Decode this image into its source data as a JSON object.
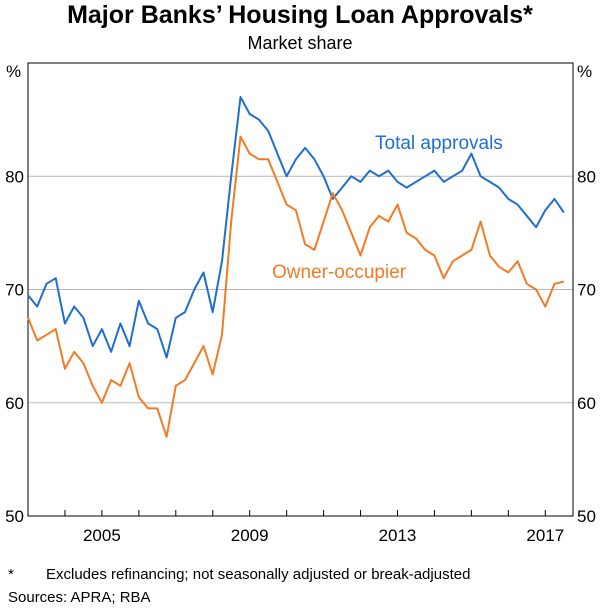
{
  "title": "Major Banks’ Housing Loan Approvals*",
  "subtitle": "Market share",
  "footnote_marker": "*",
  "footnote": "Excludes refinancing; not seasonally adjusted or break-adjusted",
  "sources": "Sources: APRA; RBA",
  "colors": {
    "total": "#1f6fd1",
    "owner": "#f47a24",
    "grid": "#b9b9b9",
    "axis": "#000000"
  },
  "chart_data": {
    "type": "line",
    "title": "Major Banks’ Housing Loan Approvals*",
    "subtitle": "Market share",
    "y_unit_left": "%",
    "y_unit_right": "%",
    "ylim": [
      50,
      90
    ],
    "yticks": [
      50,
      60,
      70,
      80
    ],
    "xlim": [
      2003.0,
      2017.75
    ],
    "xticks": [
      2005,
      2009,
      2013,
      2017
    ],
    "xtick_labels": [
      "2005",
      "2009",
      "2013",
      "2017"
    ],
    "series": [
      {
        "name": "Total approvals",
        "key": "total",
        "x": [
          2003.0,
          2003.25,
          2003.5,
          2003.75,
          2004.0,
          2004.25,
          2004.5,
          2004.75,
          2005.0,
          2005.25,
          2005.5,
          2005.75,
          2006.0,
          2006.25,
          2006.5,
          2006.75,
          2007.0,
          2007.25,
          2007.5,
          2007.75,
          2008.0,
          2008.25,
          2008.5,
          2008.75,
          2009.0,
          2009.25,
          2009.5,
          2009.75,
          2010.0,
          2010.25,
          2010.5,
          2010.75,
          2011.0,
          2011.25,
          2011.5,
          2011.75,
          2012.0,
          2012.25,
          2012.5,
          2012.75,
          2013.0,
          2013.25,
          2013.5,
          2013.75,
          2014.0,
          2014.25,
          2014.5,
          2014.75,
          2015.0,
          2015.25,
          2015.5,
          2015.75,
          2016.0,
          2016.25,
          2016.5,
          2016.75,
          2017.0,
          2017.25,
          2017.5
        ],
        "values": [
          69.5,
          68.5,
          70.5,
          71.0,
          67.0,
          68.5,
          67.5,
          65.0,
          66.5,
          64.5,
          67.0,
          65.0,
          69.0,
          67.0,
          66.5,
          64.0,
          67.5,
          68.0,
          70.0,
          71.5,
          68.0,
          72.5,
          80.0,
          87.0,
          85.5,
          85.0,
          84.0,
          82.0,
          80.0,
          81.5,
          82.5,
          81.5,
          80.0,
          78.0,
          79.0,
          80.0,
          79.5,
          80.5,
          80.0,
          80.5,
          79.5,
          79.0,
          79.5,
          80.0,
          80.5,
          79.5,
          80.0,
          80.5,
          82.0,
          80.0,
          79.5,
          79.0,
          78.0,
          77.5,
          76.5,
          75.5,
          77.0,
          78.0,
          76.8
        ]
      },
      {
        "name": "Owner-occupier",
        "key": "owner",
        "x": [
          2003.0,
          2003.25,
          2003.5,
          2003.75,
          2004.0,
          2004.25,
          2004.5,
          2004.75,
          2005.0,
          2005.25,
          2005.5,
          2005.75,
          2006.0,
          2006.25,
          2006.5,
          2006.75,
          2007.0,
          2007.25,
          2007.5,
          2007.75,
          2008.0,
          2008.25,
          2008.5,
          2008.75,
          2009.0,
          2009.25,
          2009.5,
          2009.75,
          2010.0,
          2010.25,
          2010.5,
          2010.75,
          2011.0,
          2011.25,
          2011.5,
          2011.75,
          2012.0,
          2012.25,
          2012.5,
          2012.75,
          2013.0,
          2013.25,
          2013.5,
          2013.75,
          2014.0,
          2014.25,
          2014.5,
          2014.75,
          2015.0,
          2015.25,
          2015.5,
          2015.75,
          2016.0,
          2016.25,
          2016.5,
          2016.75,
          2017.0,
          2017.25,
          2017.5
        ],
        "values": [
          67.5,
          65.5,
          66.0,
          66.5,
          63.0,
          64.5,
          63.5,
          61.5,
          60.0,
          62.0,
          61.5,
          63.5,
          60.5,
          59.5,
          59.5,
          57.0,
          61.5,
          62.0,
          63.5,
          65.0,
          62.5,
          66.0,
          76.0,
          83.5,
          82.0,
          81.5,
          81.5,
          79.5,
          77.5,
          77.0,
          74.0,
          73.5,
          76.0,
          78.5,
          77.0,
          75.0,
          73.0,
          75.5,
          76.5,
          76.0,
          77.5,
          75.0,
          74.5,
          73.5,
          73.0,
          71.0,
          72.5,
          73.0,
          73.5,
          76.0,
          73.0,
          72.0,
          71.5,
          72.5,
          70.5,
          70.0,
          68.5,
          70.5,
          70.7
        ]
      }
    ],
    "annotations": [
      {
        "text": "Total approvals",
        "series": "total"
      },
      {
        "text": "Owner-occupier",
        "series": "owner"
      }
    ]
  }
}
